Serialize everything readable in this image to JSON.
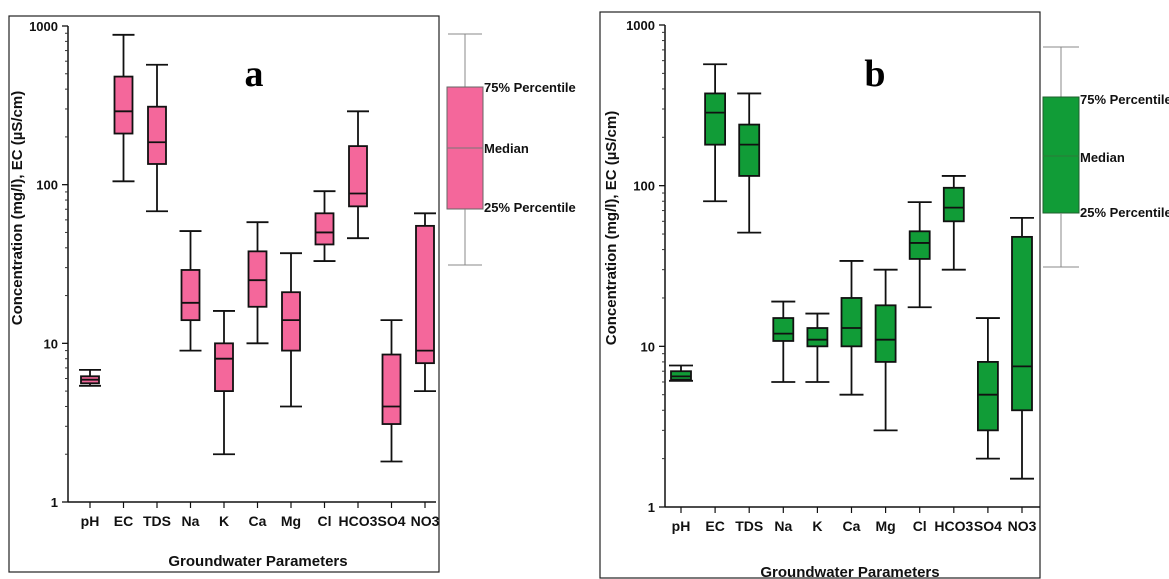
{
  "chart_data": [
    {
      "type": "box",
      "panel_label": "a",
      "xlabel": "Groundwater Parameters",
      "ylabel": "Concentration (mg/l), EC (µS/cm)",
      "yscale": "log",
      "ylim": [
        1,
        1000
      ],
      "yticks": [
        "1",
        "10",
        "100",
        "1000"
      ],
      "color": "#f4679b",
      "categories": [
        "pH",
        "EC",
        "TDS",
        "Na",
        "K",
        "Ca",
        "Mg",
        "Cl",
        "HCO3",
        "SO4",
        "NO3"
      ],
      "boxes": [
        {
          "min": 5.4,
          "q1": 5.6,
          "median": 5.9,
          "q3": 6.2,
          "max": 6.8
        },
        {
          "min": 105,
          "q1": 210,
          "median": 290,
          "q3": 480,
          "max": 880
        },
        {
          "min": 68,
          "q1": 135,
          "median": 185,
          "q3": 310,
          "max": 570
        },
        {
          "min": 9,
          "q1": 14,
          "median": 18,
          "q3": 29,
          "max": 51
        },
        {
          "min": 2,
          "q1": 5,
          "median": 8,
          "q3": 10,
          "max": 16
        },
        {
          "min": 10,
          "q1": 17,
          "median": 25,
          "q3": 38,
          "max": 58
        },
        {
          "min": 4,
          "q1": 9,
          "median": 14,
          "q3": 21,
          "max": 37
        },
        {
          "min": 33,
          "q1": 42,
          "median": 50,
          "q3": 66,
          "max": 91
        },
        {
          "min": 46,
          "q1": 73,
          "median": 88,
          "q3": 175,
          "max": 290
        },
        {
          "min": 1.8,
          "q1": 3.1,
          "median": 4,
          "q3": 8.5,
          "max": 14
        },
        {
          "min": 5,
          "q1": 7.5,
          "median": 9,
          "q3": 55,
          "max": 66
        }
      ],
      "legend": {
        "upper": "75% Percentile",
        "middle": "Median",
        "lower": "25% Percentile"
      }
    },
    {
      "type": "box",
      "panel_label": "b",
      "xlabel": "Groundwater Parameters",
      "ylabel": "Concentration (mg/l), EC (µS/cm)",
      "yscale": "log",
      "ylim": [
        1,
        1000
      ],
      "yticks": [
        "1",
        "10",
        "100",
        "1000"
      ],
      "color": "#119c37",
      "categories": [
        "pH",
        "EC",
        "TDS",
        "Na",
        "K",
        "Ca",
        "Mg",
        "Cl",
        "HCO3",
        "SO4",
        "NO3"
      ],
      "boxes": [
        {
          "min": 6.1,
          "q1": 6.2,
          "median": 6.5,
          "q3": 7,
          "max": 7.6
        },
        {
          "min": 80,
          "q1": 180,
          "median": 285,
          "q3": 375,
          "max": 570
        },
        {
          "min": 51,
          "q1": 115,
          "median": 180,
          "q3": 240,
          "max": 375
        },
        {
          "min": 6,
          "q1": 10.8,
          "median": 12,
          "q3": 15,
          "max": 19
        },
        {
          "min": 6,
          "q1": 10,
          "median": 11,
          "q3": 13,
          "max": 16
        },
        {
          "min": 5,
          "q1": 10,
          "median": 13,
          "q3": 20,
          "max": 34
        },
        {
          "min": 3,
          "q1": 8,
          "median": 11,
          "q3": 18,
          "max": 30
        },
        {
          "min": 17.5,
          "q1": 35,
          "median": 44,
          "q3": 52,
          "max": 79
        },
        {
          "min": 30,
          "q1": 60,
          "median": 73,
          "q3": 97,
          "max": 115
        },
        {
          "min": 2,
          "q1": 3,
          "median": 5,
          "q3": 8,
          "max": 15
        },
        {
          "min": 1.5,
          "q1": 4,
          "median": 7.5,
          "q3": 48,
          "max": 63
        }
      ],
      "legend": {
        "upper": "75% Percentile",
        "middle": "Median",
        "lower": "25% Percentile"
      }
    }
  ]
}
